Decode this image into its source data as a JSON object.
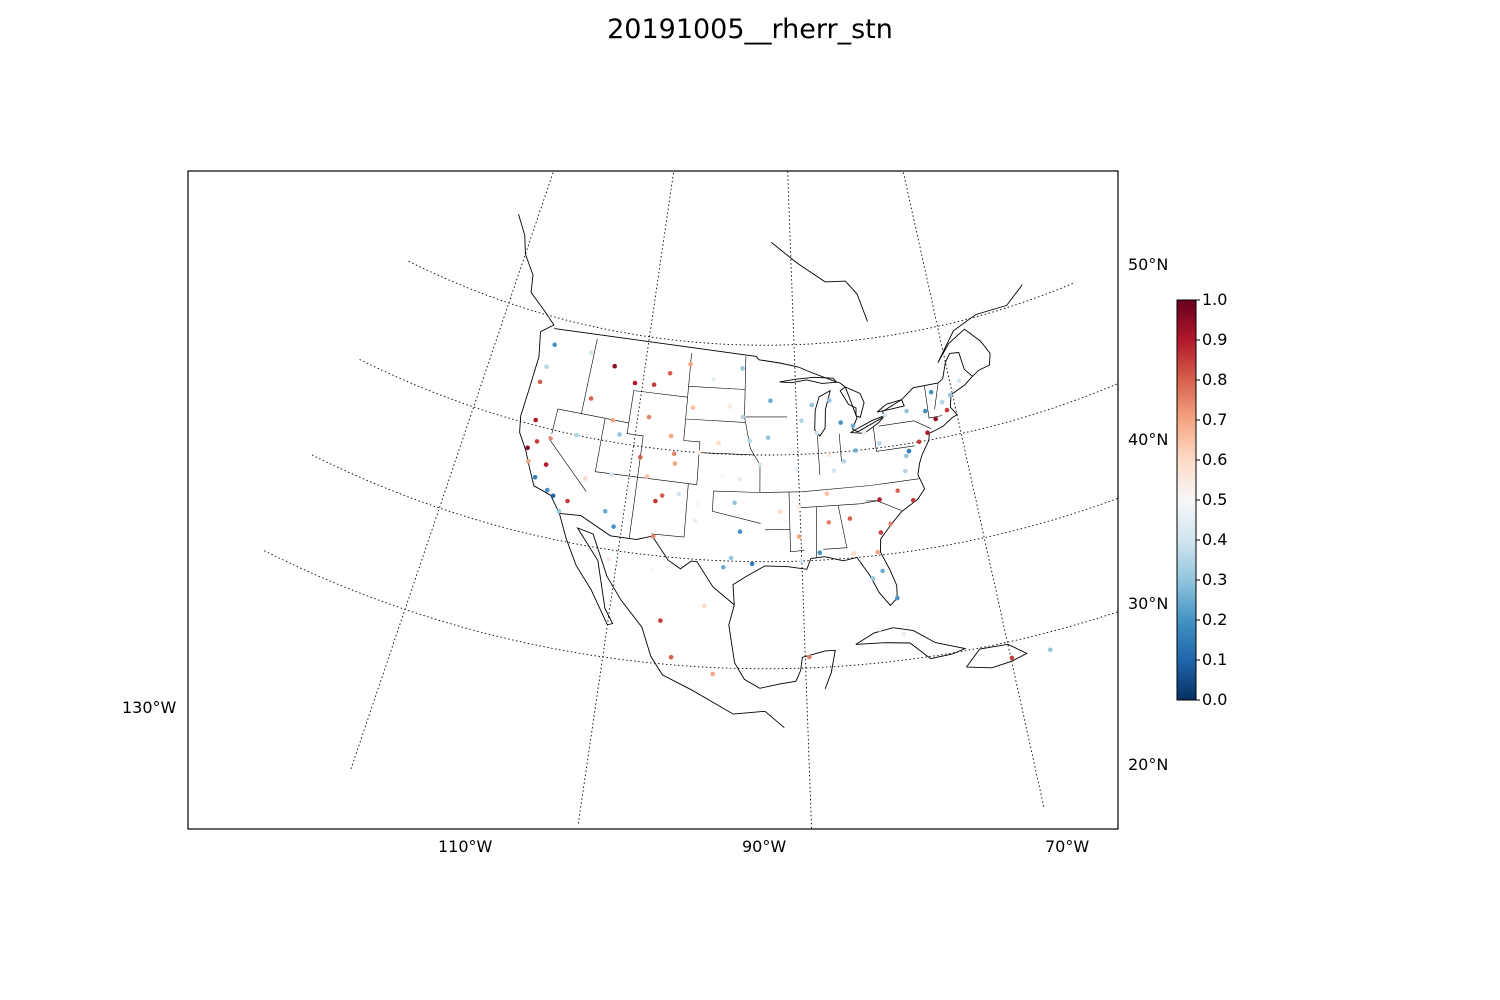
{
  "title": "20191005__rherr_stn",
  "map": {
    "projection": "lambert-conformal",
    "region": "North America",
    "parallels": [
      {
        "lat": 50,
        "label": "50°N"
      },
      {
        "lat": 40,
        "label": "40°N"
      },
      {
        "lat": 30,
        "label": "30°N"
      },
      {
        "lat": 20,
        "label": "20°N"
      }
    ],
    "meridians": [
      {
        "lon": -130,
        "label": "130°W"
      },
      {
        "lon": -110,
        "label": "110°W"
      },
      {
        "lon": -90,
        "label": "90°W"
      },
      {
        "lon": -70,
        "label": "70°W"
      }
    ],
    "point_colormap": "RdBu_r"
  },
  "colorbar": {
    "min": 0.0,
    "max": 1.0,
    "ticks": [
      "0.0",
      "0.1",
      "0.2",
      "0.3",
      "0.4",
      "0.5",
      "0.6",
      "0.7",
      "0.8",
      "0.9",
      "1.0"
    ],
    "colors": [
      "#053061",
      "#2166ac",
      "#4393c3",
      "#92c5de",
      "#d1e5f0",
      "#f7f7f7",
      "#fddbc7",
      "#f4a582",
      "#d6604d",
      "#b2182b",
      "#67001f"
    ]
  },
  "chart_data": {
    "type": "scatter",
    "title": "20191005__rherr_stn",
    "note_value_range": [
      0.0,
      1.0
    ],
    "series": [
      {
        "name": "",
        "points_lon_lat_value": [
          [
            -122.4,
            47.6,
            0.2
          ],
          [
            -122.7,
            45.5,
            0.35
          ],
          [
            -123.0,
            44.0,
            0.8
          ],
          [
            -122.3,
            40.5,
            0.9
          ],
          [
            -121.5,
            38.6,
            0.85
          ],
          [
            -122.4,
            37.8,
            0.95
          ],
          [
            -121.9,
            36.6,
            0.7
          ],
          [
            -120.7,
            35.3,
            0.15
          ],
          [
            -119.0,
            34.4,
            0.2
          ],
          [
            -118.2,
            34.0,
            0.1
          ],
          [
            -117.2,
            32.7,
            0.3
          ],
          [
            -116.5,
            33.8,
            0.85
          ],
          [
            -119.8,
            36.7,
            0.9
          ],
          [
            -120.0,
            39.2,
            0.75
          ],
          [
            -117.4,
            47.7,
            0.4
          ],
          [
            -116.2,
            43.6,
            0.8
          ],
          [
            -114.0,
            46.9,
            0.95
          ],
          [
            -111.0,
            45.7,
            0.9
          ],
          [
            -108.5,
            45.8,
            0.85
          ],
          [
            -106.6,
            47.0,
            0.8
          ],
          [
            -104.0,
            48.0,
            0.7
          ],
          [
            -100.8,
            46.8,
            0.45
          ],
          [
            -97.0,
            47.9,
            0.3
          ],
          [
            -96.8,
            43.5,
            0.35
          ],
          [
            -98.5,
            44.4,
            0.55
          ],
          [
            -103.2,
            44.1,
            0.65
          ],
          [
            -105.6,
            41.3,
            0.7
          ],
          [
            -108.6,
            42.8,
            0.75
          ],
          [
            -111.9,
            40.8,
            0.3
          ],
          [
            -112.1,
            37.0,
            0.4
          ],
          [
            -110.9,
            32.2,
            0.2
          ],
          [
            -112.1,
            33.5,
            0.25
          ],
          [
            -106.6,
            35.1,
            0.85
          ],
          [
            -105.9,
            35.7,
            0.8
          ],
          [
            -104.8,
            38.8,
            0.7
          ],
          [
            -105.0,
            39.7,
            0.75
          ],
          [
            -107.9,
            37.3,
            0.65
          ],
          [
            -101.8,
            35.2,
            0.5
          ],
          [
            -97.5,
            35.5,
            0.3
          ],
          [
            -96.8,
            32.8,
            0.2
          ],
          [
            -95.4,
            29.8,
            0.15
          ],
          [
            -98.5,
            29.4,
            0.25
          ],
          [
            -97.7,
            30.3,
            0.3
          ],
          [
            -101.9,
            33.6,
            0.45
          ],
          [
            -106.4,
            31.8,
            0.75
          ],
          [
            -94.6,
            39.1,
            0.4
          ],
          [
            -95.9,
            41.3,
            0.35
          ],
          [
            -93.6,
            41.6,
            0.3
          ],
          [
            -93.3,
            45.0,
            0.25
          ],
          [
            -90.2,
            38.6,
            0.45
          ],
          [
            -92.3,
            34.7,
            0.6
          ],
          [
            -90.1,
            35.1,
            0.55
          ],
          [
            -90.2,
            32.3,
            0.7
          ],
          [
            -90.1,
            30.0,
            0.4
          ],
          [
            -88.0,
            30.7,
            0.2
          ],
          [
            -86.8,
            33.5,
            0.75
          ],
          [
            -84.4,
            33.7,
            0.8
          ],
          [
            -81.1,
            32.1,
            0.85
          ],
          [
            -80.8,
            35.2,
            0.9
          ],
          [
            -78.6,
            35.8,
            0.8
          ],
          [
            -77.4,
            37.5,
            0.35
          ],
          [
            -77.0,
            38.9,
            0.3
          ],
          [
            -76.6,
            39.3,
            0.15
          ],
          [
            -75.2,
            40.0,
            0.85
          ],
          [
            -74.0,
            40.7,
            0.9
          ],
          [
            -71.1,
            42.4,
            0.85
          ],
          [
            -72.7,
            41.8,
            0.95
          ],
          [
            -73.8,
            42.7,
            0.2
          ],
          [
            -76.1,
            43.0,
            0.3
          ],
          [
            -78.9,
            42.9,
            0.4
          ],
          [
            -80.0,
            40.4,
            0.35
          ],
          [
            -81.7,
            41.5,
            0.45
          ],
          [
            -83.0,
            42.3,
            0.25
          ],
          [
            -84.5,
            42.7,
            0.2
          ],
          [
            -85.7,
            44.8,
            0.3
          ],
          [
            -87.6,
            41.9,
            0.4
          ],
          [
            -89.4,
            43.1,
            0.35
          ],
          [
            -88.0,
            44.5,
            0.3
          ],
          [
            -86.2,
            39.8,
            0.55
          ],
          [
            -85.8,
            38.3,
            0.4
          ],
          [
            -84.5,
            39.1,
            0.35
          ],
          [
            -83.0,
            40.0,
            0.25
          ],
          [
            -86.8,
            36.2,
            0.65
          ],
          [
            -84.3,
            30.4,
            0.6
          ],
          [
            -82.5,
            27.9,
            0.3
          ],
          [
            -81.4,
            28.5,
            0.25
          ],
          [
            -80.2,
            25.8,
            0.2
          ],
          [
            -81.7,
            30.3,
            0.7
          ],
          [
            -77.0,
            34.7,
            0.85
          ],
          [
            -79.9,
            32.8,
            0.75
          ],
          [
            -70.3,
            43.7,
            0.3
          ],
          [
            -68.8,
            44.8,
            0.4
          ],
          [
            -72.6,
            44.3,
            0.2
          ],
          [
            -71.5,
            43.2,
            0.35
          ],
          [
            -99.1,
            19.4,
            0.7
          ],
          [
            -103.3,
            20.7,
            0.8
          ],
          [
            -100.3,
            25.7,
            0.6
          ],
          [
            -106.1,
            28.6,
            0.5
          ],
          [
            -110.9,
            29.1,
            0.55
          ],
          [
            -104.7,
            24.0,
            0.85
          ],
          [
            -89.6,
            21.0,
            0.75
          ],
          [
            -82.4,
            23.1,
            0.5
          ],
          [
            -80.0,
            22.4,
            0.45
          ],
          [
            -66.1,
            18.4,
            0.3
          ],
          [
            -69.9,
            18.5,
            0.85
          ],
          [
            -115.0,
            36.2,
            0.6
          ],
          [
            -119.8,
            39.5,
            0.5
          ],
          [
            -117.0,
            40.0,
            0.35
          ],
          [
            -113.0,
            42.0,
            0.7
          ],
          [
            -109.0,
            39.0,
            0.8
          ],
          [
            -104.0,
            36.0,
            0.4
          ],
          [
            -99.0,
            38.0,
            0.5
          ],
          [
            -97.0,
            37.7,
            0.45
          ],
          [
            -99.7,
            41.0,
            0.6
          ],
          [
            -102.0,
            40.0,
            0.55
          ]
        ]
      }
    ]
  }
}
